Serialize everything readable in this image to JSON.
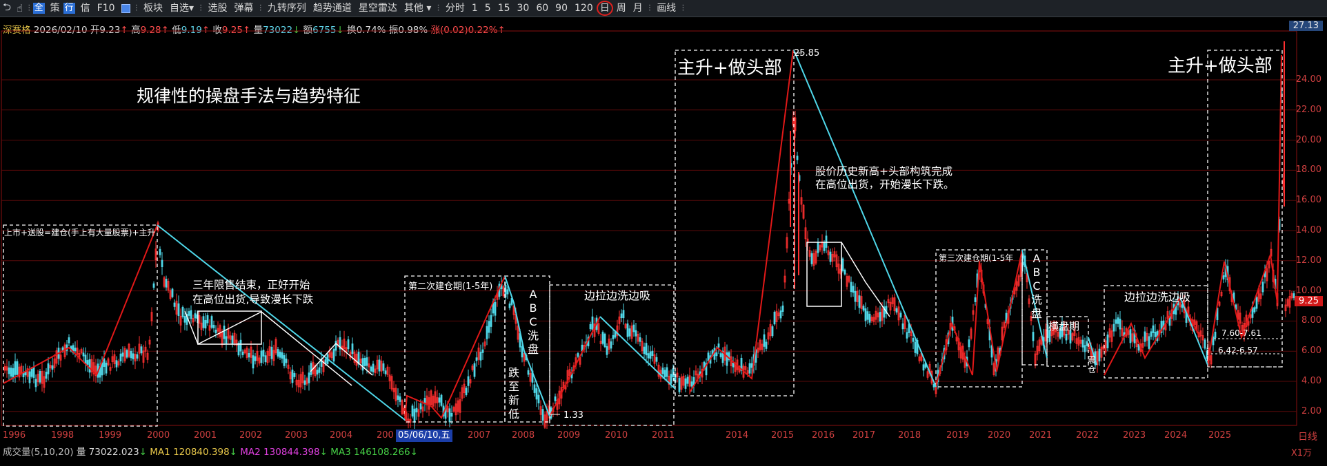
{
  "toolbar": {
    "nav_back": "⮌",
    "nav_hand": "☝",
    "nav_more": "⁝",
    "badge_quan": "全",
    "label_ce": "策",
    "badge_xing": "行",
    "label_xin": "信",
    "label_f10": "F10",
    "items": [
      "板块",
      "自选",
      "选股",
      "弹幕",
      "九转序列",
      "趋势通道",
      "星空雷达",
      "其他",
      "分时",
      "1",
      "5",
      "15",
      "30",
      "60",
      "90",
      "120",
      "日",
      "周",
      "月",
      "画线"
    ],
    "active_period": "日",
    "dropdown_arrow": "▾",
    "more_icon": "⁝"
  },
  "info": {
    "stock": "深赛格",
    "date": "2026/02/10",
    "open_label": "开",
    "open": "9.23",
    "high_label": "高",
    "high": "9.28",
    "low_label": "低",
    "low": "9.19",
    "close_label": "收",
    "close": "9.25",
    "vol_label": "量",
    "vol": "73022",
    "amt_label": "额",
    "amt": "6755",
    "turn_label": "换",
    "turn": "0.74%",
    "amp_label": "振",
    "amp": "0.98%",
    "chg_label": "涨",
    "chg": "(0.02)0.22%",
    "up": "↑",
    "down": "↓"
  },
  "volume": {
    "title": "成交量(5,10,20)",
    "vol_label": "量",
    "vol": "73022.023",
    "ma1_label": "MA1",
    "ma1": "120840.398",
    "ma2_label": "MA2",
    "ma2": "130844.398",
    "ma3_label": "MA3",
    "ma3": "146108.266",
    "down": "↓"
  },
  "axis": {
    "years": [
      "1996",
      "1998",
      "1999",
      "2000",
      "2001",
      "2002",
      "2003",
      "2004",
      "200",
      "2007",
      "2008",
      "2009",
      "2010",
      "2011",
      "2014",
      "2015",
      "2016",
      "2017",
      "2018",
      "2019",
      "2020",
      "2021",
      "2022",
      "2023",
      "2024",
      "2025"
    ],
    "date_pick": "05/06/10,五",
    "prices": [
      "24.00",
      "22.00",
      "20.00",
      "18.00",
      "16.00",
      "14.00",
      "12.00",
      "10.00",
      "8.00",
      "6.00",
      "4.00",
      "2.00"
    ],
    "top_price": "27.13",
    "current_price": "9.25",
    "label": "日线",
    "zoom": "X1万"
  },
  "colors": {
    "up": "#ff3030",
    "down": "#4fd8e8",
    "background": "#000000",
    "grid": "#5a0a0a",
    "accent": "#2b6fd6"
  },
  "annotations": {
    "title": "规律性的操盘手法与趋势特征",
    "box_listing": "上市+送股=建仓(手上有大量股票)+主升",
    "lockup_1": "三年限售结束，正好开始",
    "lockup_2": "在高位出货,导致漫长下跌",
    "box_second": "第二次建仓期(1-5年)",
    "abc1": "ABC洗盘",
    "fall_new_low": "跌至新低",
    "pull_wash_1": "边拉边洗边吸",
    "peak_1": "主升+做头部",
    "peak_price": "25.85",
    "hist_high_1": "股价历史新高+头部构筑完成",
    "hist_high_2": "在高位出货，开始漫长下跌。",
    "low_price": "1.33",
    "box_third": "第三次建仓期(1-5年",
    "abc2": "ABC洗盘",
    "sideways": "横盘期",
    "cang": "震仓",
    "pull_wash_2": "边拉边洗边吸",
    "peak_2": "主升+做头部",
    "range_1": "7.60-7.61",
    "range_2": "6.42-6.57"
  }
}
